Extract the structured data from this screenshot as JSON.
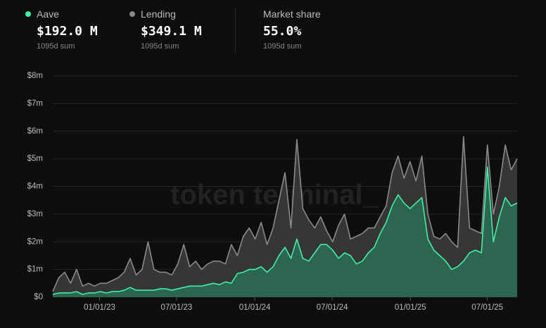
{
  "chart_data": {
    "type": "area",
    "stats": [
      {
        "name": "Aave",
        "value": "$192.0 M",
        "note": "1095d sum",
        "color": "#3ef0a8"
      },
      {
        "name": "Lending",
        "value": "$349.1 M",
        "note": "1095d sum",
        "color": "#8a8a8a"
      },
      {
        "name": "Market share",
        "value": "55.0%",
        "note": "1095d sum"
      }
    ],
    "watermark": "token terminal_",
    "x": [
      "2022-09-13",
      "2022-09-27",
      "2022-10-11",
      "2022-10-25",
      "2022-11-08",
      "2022-11-22",
      "2022-12-06",
      "2022-12-20",
      "2023-01-03",
      "2023-01-17",
      "2023-01-31",
      "2023-02-14",
      "2023-02-28",
      "2023-03-14",
      "2023-03-28",
      "2023-04-11",
      "2023-04-25",
      "2023-05-09",
      "2023-05-23",
      "2023-06-06",
      "2023-06-20",
      "2023-07-04",
      "2023-07-18",
      "2023-08-01",
      "2023-08-15",
      "2023-08-29",
      "2023-09-12",
      "2023-09-26",
      "2023-10-10",
      "2023-10-24",
      "2023-11-07",
      "2023-11-21",
      "2023-12-05",
      "2023-12-19",
      "2024-01-02",
      "2024-01-16",
      "2024-01-30",
      "2024-02-13",
      "2024-02-27",
      "2024-03-12",
      "2024-03-26",
      "2024-04-09",
      "2024-04-23",
      "2024-05-07",
      "2024-05-21",
      "2024-06-04",
      "2024-06-18",
      "2024-07-02",
      "2024-07-16",
      "2024-07-30",
      "2024-08-13",
      "2024-08-27",
      "2024-09-10",
      "2024-09-24",
      "2024-10-08",
      "2024-10-22",
      "2024-11-05",
      "2024-11-19",
      "2024-12-03",
      "2024-12-17",
      "2024-12-31",
      "2025-01-14",
      "2025-01-28",
      "2025-02-11",
      "2025-02-25",
      "2025-03-11",
      "2025-03-25",
      "2025-04-08",
      "2025-04-22",
      "2025-05-06",
      "2025-05-20",
      "2025-06-03",
      "2025-06-17",
      "2025-07-01",
      "2025-07-15",
      "2025-07-29",
      "2025-08-12",
      "2025-08-26",
      "2025-09-09"
    ],
    "series": [
      {
        "name": "Lending",
        "color": "#8a8a8a",
        "fill": "#393939",
        "values": [
          200000,
          700000,
          900000,
          500000,
          1000000,
          400000,
          500000,
          400000,
          500000,
          500000,
          600000,
          700000,
          900000,
          1400000,
          800000,
          1000000,
          2000000,
          1000000,
          900000,
          900000,
          800000,
          1200000,
          1900000,
          1100000,
          1300000,
          1000000,
          1200000,
          1300000,
          1300000,
          1200000,
          1900000,
          1500000,
          2200000,
          2500000,
          2100000,
          2700000,
          1900000,
          2500000,
          3500000,
          4500000,
          2500000,
          5700000,
          3200000,
          2800000,
          2500000,
          2900000,
          2400000,
          2000000,
          2600000,
          3000000,
          2100000,
          2200000,
          2300000,
          2500000,
          2500000,
          2900000,
          3300000,
          4500000,
          5100000,
          4300000,
          4900000,
          4200000,
          5100000,
          3000000,
          2200000,
          2100000,
          2300000,
          2000000,
          1800000,
          5800000,
          2500000,
          2400000,
          2300000,
          5500000,
          3000000,
          4000000,
          5500000,
          4600000,
          5000000
        ]
      },
      {
        "name": "Aave",
        "color": "#3ef0a8",
        "fill": "#2c6a52",
        "values": [
          100000,
          150000,
          150000,
          150000,
          200000,
          100000,
          150000,
          150000,
          200000,
          150000,
          200000,
          200000,
          250000,
          350000,
          250000,
          250000,
          250000,
          250000,
          300000,
          300000,
          250000,
          300000,
          350000,
          400000,
          400000,
          400000,
          450000,
          500000,
          450000,
          550000,
          500000,
          850000,
          900000,
          1000000,
          1000000,
          1100000,
          900000,
          1100000,
          1500000,
          1800000,
          1400000,
          2100000,
          1400000,
          1300000,
          1600000,
          1900000,
          1900000,
          1700000,
          1400000,
          1600000,
          1500000,
          1200000,
          1300000,
          1600000,
          1800000,
          2300000,
          2700000,
          3300000,
          3700000,
          3400000,
          3200000,
          3400000,
          3600000,
          2100000,
          1700000,
          1500000,
          1300000,
          1000000,
          1100000,
          1300000,
          1600000,
          1700000,
          1600000,
          4700000,
          2000000,
          2900000,
          3600000,
          3300000,
          3400000
        ]
      }
    ],
    "xlim": [
      "2022-09-13",
      "2025-09-09"
    ],
    "xticks": [
      {
        "value": "2023-01-01",
        "label": "01/01/23"
      },
      {
        "value": "2023-07-01",
        "label": "07/01/23"
      },
      {
        "value": "2024-01-01",
        "label": "01/01/24"
      },
      {
        "value": "2024-07-01",
        "label": "07/01/24"
      },
      {
        "value": "2025-01-01",
        "label": "01/01/25"
      },
      {
        "value": "2025-07-01",
        "label": "07/01/25"
      }
    ],
    "ylim": [
      0,
      8000000
    ],
    "yticks": [
      {
        "value": 0,
        "label": "$0"
      },
      {
        "value": 1000000,
        "label": "$1m"
      },
      {
        "value": 2000000,
        "label": "$2m"
      },
      {
        "value": 3000000,
        "label": "$3m"
      },
      {
        "value": 4000000,
        "label": "$4m"
      },
      {
        "value": 5000000,
        "label": "$5m"
      },
      {
        "value": 6000000,
        "label": "$6m"
      },
      {
        "value": 7000000,
        "label": "$7m"
      },
      {
        "value": 8000000,
        "label": "$8m"
      }
    ],
    "grid": true
  }
}
